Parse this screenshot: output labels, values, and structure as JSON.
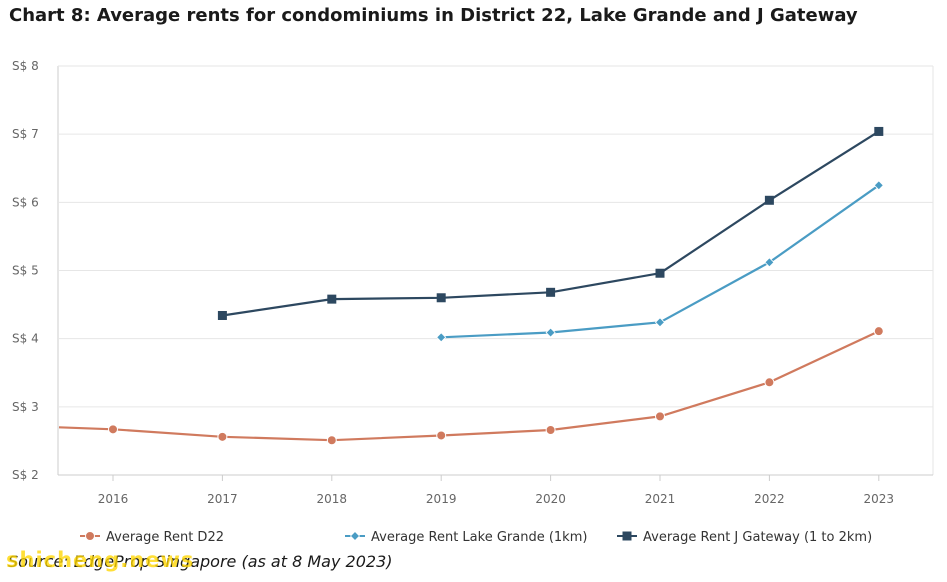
{
  "chart_data": {
    "type": "line",
    "title": "Chart 8: Average rents for condominiums in District 22, Lake Grande and J Gateway",
    "xlabel": "",
    "ylabel": "",
    "categories": [
      "2016",
      "2017",
      "2018",
      "2019",
      "2020",
      "2021",
      "2022",
      "2023"
    ],
    "y_tick_labels": [
      "S$ 2",
      "S$ 3",
      "S$ 4",
      "S$ 5",
      "S$ 6",
      "S$ 7",
      "S$ 8"
    ],
    "ylim": [
      2,
      8
    ],
    "grid": true,
    "legend_position": "bottom",
    "series": [
      {
        "name": "Average Rent D22",
        "color": "#d07a5e",
        "marker": "circle",
        "start_x": 2015.5,
        "start_y": 2.7,
        "values": [
          2.67,
          2.56,
          2.51,
          2.58,
          2.66,
          2.86,
          3.36,
          4.11
        ]
      },
      {
        "name": "Average Rent Lake Grande (1km)",
        "color": "#4a9cc4",
        "marker": "diamond",
        "values": [
          null,
          null,
          null,
          4.02,
          4.09,
          4.24,
          5.12,
          6.25
        ]
      },
      {
        "name": "Average Rent J Gateway (1 to 2km)",
        "color": "#2d4860",
        "marker": "square",
        "values": [
          null,
          4.34,
          4.58,
          4.6,
          4.68,
          4.96,
          6.03,
          7.04
        ]
      }
    ]
  },
  "source": "Source: EdgeProp Singapore (as at 8 May 2023)",
  "watermark": "shicheng.news",
  "colors": {
    "grid": "#e6e6e6",
    "axis": "#cccccc",
    "text": "#666666"
  }
}
